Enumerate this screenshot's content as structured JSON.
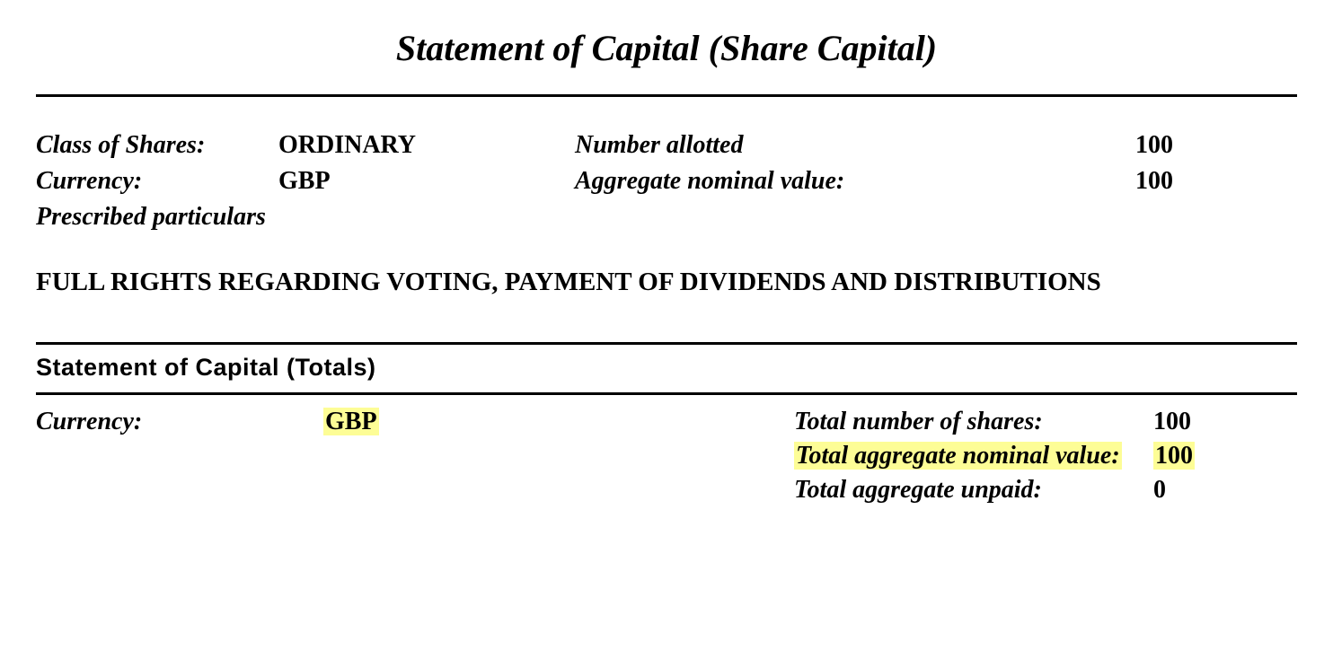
{
  "title": "Statement of Capital (Share Capital)",
  "shares": {
    "class_label": "Class of Shares:",
    "class_value": "ORDINARY",
    "currency_label": "Currency:",
    "currency_value": "GBP",
    "number_allotted_label": "Number allotted",
    "number_allotted_value": "100",
    "aggregate_label": "Aggregate nominal value:",
    "aggregate_value": "100",
    "prescribed_label": "Prescribed particulars"
  },
  "rights_text": "FULL RIGHTS REGARDING VOTING, PAYMENT OF DIVIDENDS AND DISTRIBUTIONS",
  "totals_title": "Statement of Capital (Totals)",
  "totals": {
    "currency_label": "Currency:",
    "currency_value": "GBP",
    "total_shares_label": "Total number of shares:",
    "total_shares_value": "100",
    "total_agg_nominal_label": "Total aggregate nominal value:",
    "total_agg_nominal_value": "100",
    "total_agg_unpaid_label": "Total aggregate unpaid:",
    "total_agg_unpaid_value": "0"
  },
  "colors": {
    "highlight": "#fdfd96",
    "text": "#000000",
    "background": "#ffffff",
    "rule": "#000000"
  }
}
